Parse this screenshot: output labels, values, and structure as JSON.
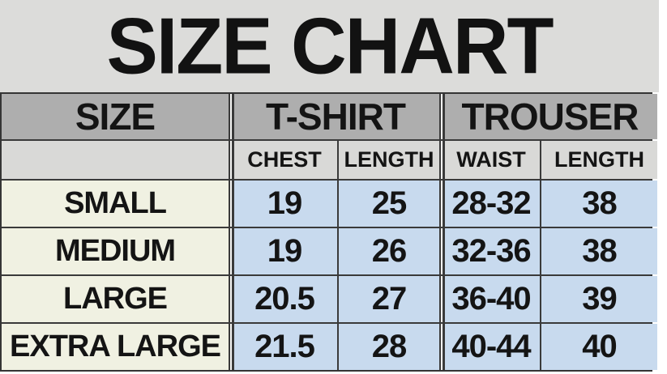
{
  "title": "SIZE CHART",
  "table": {
    "col_headers": {
      "size": "SIZE",
      "tshirt": "T-SHIRT",
      "trouser": "TROUSER"
    },
    "sub_headers": {
      "chest": "CHEST",
      "tshirt_length": "LENGTH",
      "waist": "WAIST",
      "trouser_length": "LENGTH"
    },
    "rows": [
      {
        "size": "SMALL",
        "chest": "19",
        "tshirt_length": "25",
        "waist": "28-32",
        "trouser_length": "38"
      },
      {
        "size": "MEDIUM",
        "chest": "19",
        "tshirt_length": "26",
        "waist": "32-36",
        "trouser_length": "38"
      },
      {
        "size": "LARGE",
        "chest": "20.5",
        "tshirt_length": "27",
        "waist": "36-40",
        "trouser_length": "39"
      },
      {
        "size": "EXTRA LARGE",
        "chest": "21.5",
        "tshirt_length": "28",
        "waist": "40-44",
        "trouser_length": "40"
      }
    ]
  },
  "colors": {
    "title_bg": "#dcdcda",
    "header_bg": "#aeaeae",
    "subheader_bg": "#d9d9d7",
    "size_column_bg": "#f0f1e2",
    "value_bg": "#c8daee",
    "gridline": "#3a3a3a",
    "text": "#141414"
  },
  "chart_data": {
    "type": "table",
    "title": "SIZE CHART",
    "column_groups": [
      "SIZE",
      "T-SHIRT",
      "TROUSER"
    ],
    "columns": [
      "SIZE",
      "T-SHIRT CHEST",
      "T-SHIRT LENGTH",
      "TROUSER WAIST",
      "TROUSER LENGTH"
    ],
    "rows": [
      [
        "SMALL",
        "19",
        "25",
        "28-32",
        "38"
      ],
      [
        "MEDIUM",
        "19",
        "26",
        "32-36",
        "38"
      ],
      [
        "LARGE",
        "20.5",
        "27",
        "36-40",
        "39"
      ],
      [
        "EXTRA LARGE",
        "21.5",
        "28",
        "40-44",
        "40"
      ]
    ]
  }
}
